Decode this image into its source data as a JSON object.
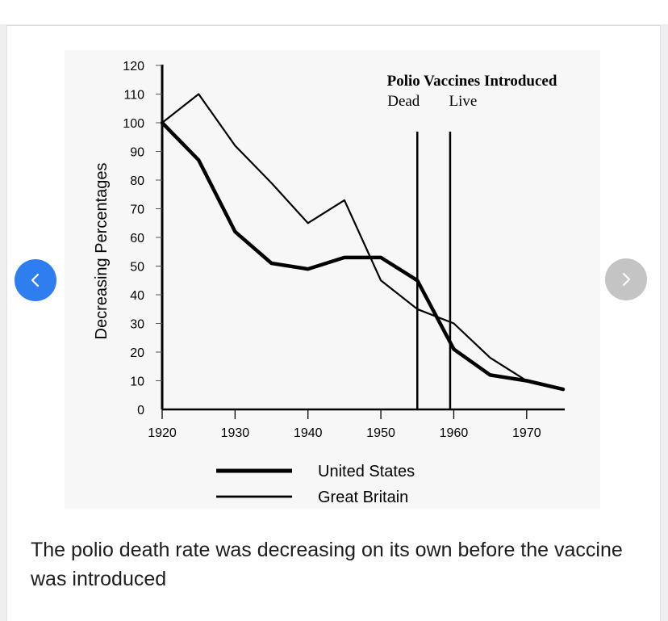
{
  "navigation": {
    "prev_icon": "chevron-left-icon",
    "next_icon": "chevron-right-icon",
    "prev_color": "#2f7ef0",
    "next_color": "#c4c4c4"
  },
  "caption": "The polio death rate was decreasing on its own before the vaccine was introduced",
  "chart_data": {
    "type": "line",
    "annotation_title": "Polio Vaccines Introduced",
    "ylabel": "Decreasing Percentages",
    "xlabel": "",
    "xlim": [
      1920,
      1975
    ],
    "ylim": [
      0,
      120
    ],
    "x_ticks": [
      "1920",
      "1930",
      "1940",
      "1950",
      "1960",
      "1970"
    ],
    "y_ticks": [
      "0",
      "10",
      "20",
      "30",
      "40",
      "50",
      "60",
      "70",
      "80",
      "90",
      "100",
      "110",
      "120"
    ],
    "grid": false,
    "vertical_markers": [
      {
        "x": 1955,
        "label": "Dead"
      },
      {
        "x": 1959.5,
        "label": "Live"
      }
    ],
    "series": [
      {
        "name": "United States",
        "line_weight": "thick",
        "x": [
          1920,
          1925,
          1930,
          1935,
          1940,
          1945,
          1950,
          1955,
          1960,
          1965,
          1970,
          1975
        ],
        "values": [
          100,
          87,
          62,
          51,
          49,
          53,
          53,
          45,
          21,
          12,
          10,
          7
        ]
      },
      {
        "name": "Great Britain",
        "line_weight": "thin",
        "x": [
          1920,
          1925,
          1930,
          1935,
          1940,
          1945,
          1950,
          1955,
          1960,
          1965,
          1970,
          1975
        ],
        "values": [
          100,
          110,
          92,
          79,
          65,
          73,
          45,
          35,
          30,
          18,
          10,
          7
        ]
      }
    ],
    "legend_placement": "bottom-center"
  }
}
